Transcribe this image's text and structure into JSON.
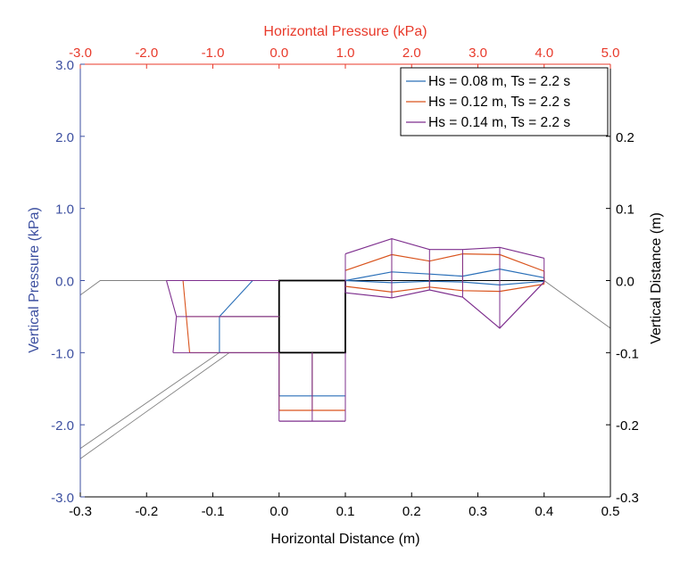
{
  "colors": {
    "top_axis": "#e8392a",
    "left_axis": "#3c4fa0",
    "right_axis": "#000000",
    "bottom_axis": "#000000",
    "series_blue": "#2a6fb8",
    "series_red": "#d9541e",
    "series_purple": "#7e2f8e",
    "structure": "#000000",
    "bed": "#808080"
  },
  "chart_data": {
    "type": "line",
    "xlabel": "Horizontal Distance (m)",
    "ylabel_left": "Vertical Pressure (kPa)",
    "ylabel_right": "Vertical Distance (m)",
    "xlabel_top": "Horizontal Pressure (kPa)",
    "x_ticks": [
      "-0.3",
      "-0.2",
      "-0.1",
      "0.0",
      "0.1",
      "0.2",
      "0.3",
      "0.4",
      "0.5"
    ],
    "left_ticks": [
      "3.0",
      "2.0",
      "1.0",
      "0.0",
      "-1.0",
      "-2.0",
      "-3.0"
    ],
    "right_ticks": [
      "0.2",
      "0.1",
      "0.0",
      "-0.1",
      "-0.2",
      "-0.3"
    ],
    "top_ticks": [
      "-3.0",
      "-2.0",
      "-1.0",
      "0.0",
      "1.0",
      "2.0",
      "3.0",
      "4.0",
      "5.0"
    ],
    "xlim": [
      -0.3,
      0.5
    ],
    "ylim": [
      -0.3,
      0.3
    ],
    "legend_position": "top-right",
    "legend": [
      "Hs = 0.08 m, Ts = 2.2 s",
      "Hs = 0.12 m, Ts = 2.2 s",
      "Hs = 0.14 m, Ts = 2.2 s"
    ],
    "series": [
      {
        "name": "Hs = 0.08 m, Ts = 2.2 s",
        "color": "#2a6fb8",
        "left_envelope_x": [
          -0.04,
          -0.09,
          -0.09
        ],
        "left_envelope_y": [
          0.0,
          -0.05,
          -0.1
        ],
        "bottom_level_y": -0.16,
        "right_upper_x": [
          0.1,
          0.17,
          0.227,
          0.277,
          0.333,
          0.4
        ],
        "right_upper_y": [
          0.0,
          0.012,
          0.009,
          0.006,
          0.016,
          0.004
        ],
        "right_lower_x": [
          0.1,
          0.17,
          0.227,
          0.277,
          0.333,
          0.4
        ],
        "right_lower_y": [
          0.0,
          -0.003,
          -0.001,
          -0.002,
          -0.006,
          -0.001
        ]
      },
      {
        "name": "Hs = 0.12 m, Ts = 2.2 s",
        "color": "#d9541e",
        "left_envelope_x": [
          -0.145,
          -0.14,
          -0.135
        ],
        "left_envelope_y": [
          0.0,
          -0.05,
          -0.1
        ],
        "bottom_level_y": -0.18,
        "right_upper_x": [
          0.1,
          0.17,
          0.227,
          0.277,
          0.333,
          0.4
        ],
        "right_upper_y": [
          0.014,
          0.036,
          0.027,
          0.037,
          0.036,
          0.013
        ],
        "right_lower_x": [
          0.1,
          0.17,
          0.227,
          0.277,
          0.333,
          0.4
        ],
        "right_lower_y": [
          -0.008,
          -0.016,
          -0.009,
          -0.014,
          -0.015,
          -0.005
        ]
      },
      {
        "name": "Hs = 0.14 m, Ts = 2.2 s",
        "color": "#7e2f8e",
        "left_envelope_x": [
          -0.17,
          -0.155,
          -0.16
        ],
        "left_envelope_y": [
          0.0,
          -0.05,
          -0.1
        ],
        "bottom_level_y": -0.195,
        "right_upper_x": [
          0.1,
          0.17,
          0.227,
          0.277,
          0.333,
          0.4
        ],
        "right_upper_y": [
          0.037,
          0.058,
          0.043,
          0.043,
          0.046,
          0.031
        ],
        "right_lower_x": [
          0.1,
          0.17,
          0.227,
          0.277,
          0.333,
          0.4
        ],
        "right_lower_y": [
          -0.017,
          -0.024,
          -0.013,
          -0.023,
          -0.066,
          -0.002
        ]
      }
    ],
    "structure": {
      "caisson_x": [
        0.0,
        0.1
      ],
      "caisson_y": [
        -0.1,
        0.0
      ]
    },
    "bed_profile": {
      "x": [
        -0.3,
        -0.27,
        0.0
      ],
      "y": [
        -0.02,
        0.0,
        0.0
      ],
      "right_x": [
        0.1,
        0.4,
        0.5
      ],
      "right_y": [
        0.0,
        0.0,
        -0.066
      ],
      "slope_upper_x": [
        -0.3,
        -0.09
      ],
      "slope_upper_y": [
        -0.233,
        -0.1
      ],
      "slope_lower_x": [
        -0.3,
        -0.075
      ],
      "slope_lower_y": [
        -0.247,
        -0.1
      ]
    }
  }
}
